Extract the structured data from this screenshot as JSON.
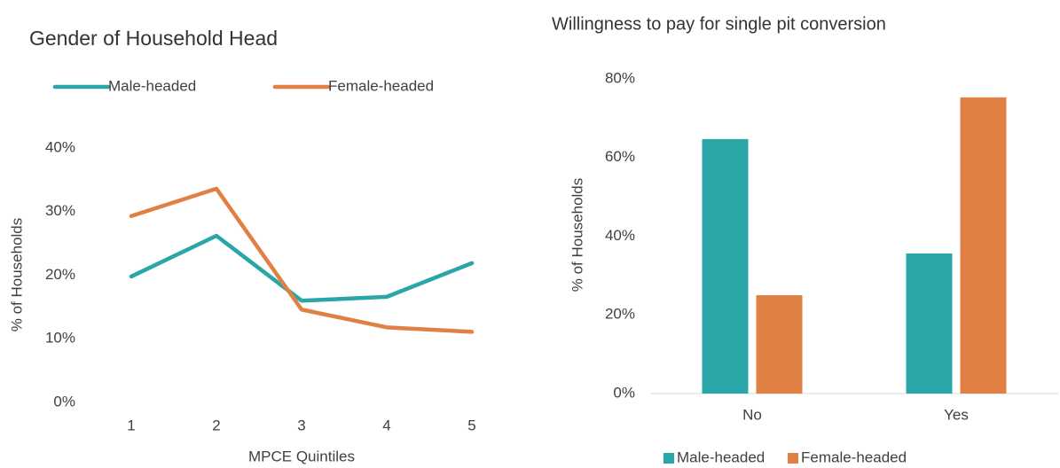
{
  "chart_data": [
    {
      "type": "line",
      "title": "Gender of Household Head",
      "x_label": "MPCE Quintiles",
      "y_label": "% of Households",
      "categories": [
        "1",
        "2",
        "3",
        "4",
        "5"
      ],
      "series": [
        {
          "name": "Male-headed",
          "color": "#2aa5a8",
          "values": [
            19.8,
            26.2,
            16.0,
            16.6,
            21.9
          ]
        },
        {
          "name": "Female-headed",
          "color": "#e08044",
          "values": [
            29.3,
            33.6,
            14.6,
            11.8,
            11.1
          ]
        }
      ],
      "ylim": [
        0,
        40
      ],
      "yticks": [
        {
          "value": 0,
          "label": "0%"
        },
        {
          "value": 10,
          "label": "10%"
        },
        {
          "value": 20,
          "label": "20%"
        },
        {
          "value": 30,
          "label": "30%"
        },
        {
          "value": 40,
          "label": "40%"
        }
      ],
      "grid": false,
      "legend": "top"
    },
    {
      "type": "bar",
      "title": "Willingness to pay for single pit conversion",
      "y_label": "% of Households",
      "categories": [
        "No",
        "Yes"
      ],
      "series": [
        {
          "name": "Male-headed",
          "color": "#2aa5a8",
          "values": [
            64.7,
            35.6
          ]
        },
        {
          "name": "Female-headed",
          "color": "#e08044",
          "values": [
            25.0,
            75.3
          ]
        }
      ],
      "ylim": [
        0,
        80
      ],
      "yticks": [
        {
          "value": 0,
          "label": "0%"
        },
        {
          "value": 20,
          "label": "20%"
        },
        {
          "value": 40,
          "label": "40%"
        },
        {
          "value": 60,
          "label": "60%"
        },
        {
          "value": 80,
          "label": "80%"
        }
      ],
      "grid": false,
      "legend": "bottom"
    }
  ]
}
